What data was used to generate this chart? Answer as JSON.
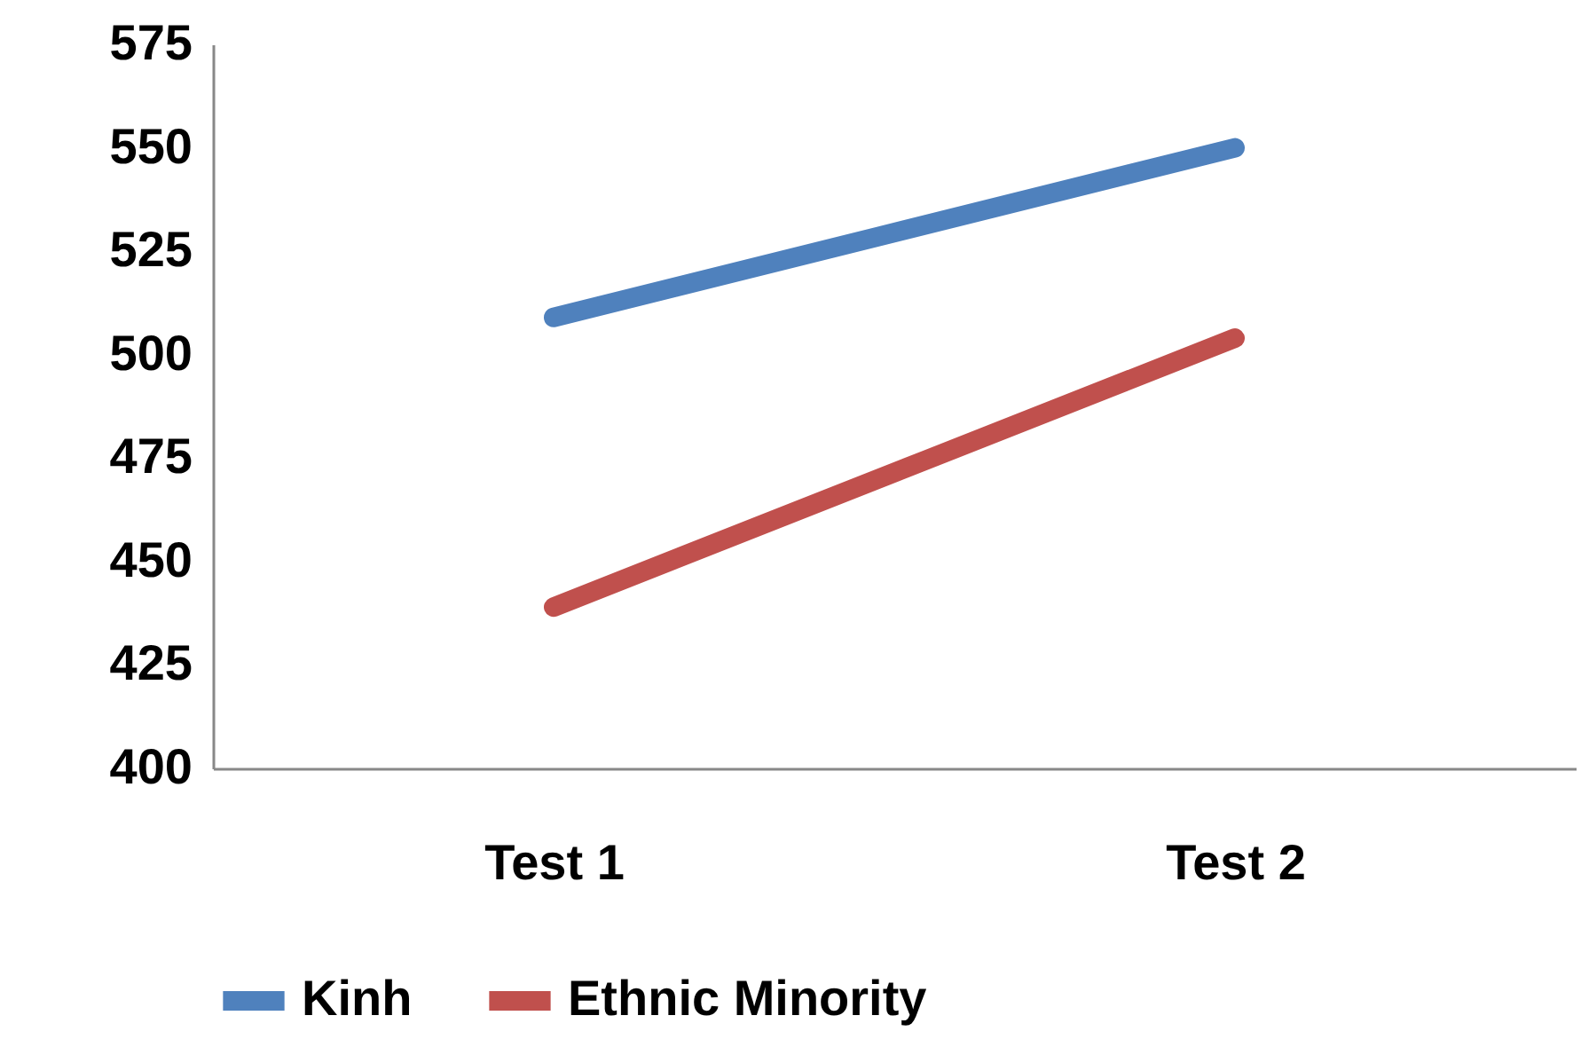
{
  "chart_data": {
    "type": "line",
    "categories": [
      "Test 1",
      "Test 2"
    ],
    "series": [
      {
        "name": "Kinh",
        "color": "#4f81bd",
        "values": [
          509,
          550
        ]
      },
      {
        "name": "Ethnic Minority",
        "color": "#c0504d",
        "values": [
          439,
          504
        ]
      }
    ],
    "ylim": [
      400,
      575
    ],
    "yticks": [
      400,
      425,
      450,
      475,
      500,
      525,
      550,
      575
    ],
    "grid": false,
    "legend": "bottom",
    "marker": "none",
    "line_style": "solid"
  }
}
